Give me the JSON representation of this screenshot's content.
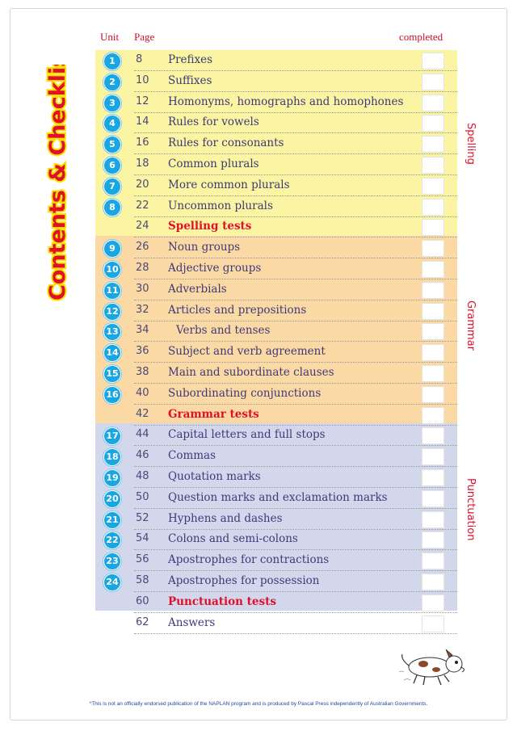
{
  "header": {
    "unit": "Unit",
    "page": "Page",
    "completed": "completed"
  },
  "side_title": "Contents & Checklist",
  "sections": [
    {
      "label": "Spelling",
      "color": "#fbf4a2"
    },
    {
      "label": "Grammar",
      "color": "#fbd9a4"
    },
    {
      "label": "Punctuation",
      "color": "#d3d7ec"
    }
  ],
  "rows": [
    {
      "unit": "1",
      "page": "8",
      "title": "Prefixes"
    },
    {
      "unit": "2",
      "page": "10",
      "title": "Suffixes"
    },
    {
      "unit": "3",
      "page": "12",
      "title": "Homonyms, homographs and homophones"
    },
    {
      "unit": "4",
      "page": "14",
      "title": "Rules for vowels"
    },
    {
      "unit": "5",
      "page": "16",
      "title": "Rules for consonants"
    },
    {
      "unit": "6",
      "page": "18",
      "title": "Common plurals"
    },
    {
      "unit": "7",
      "page": "20",
      "title": "More common plurals"
    },
    {
      "unit": "8",
      "page": "22",
      "title": "Uncommon plurals"
    },
    {
      "unit": "",
      "page": "24",
      "title": "Spelling tests"
    },
    {
      "unit": "9",
      "page": "26",
      "title": "Noun groups"
    },
    {
      "unit": "10",
      "page": "28",
      "title": "Adjective groups"
    },
    {
      "unit": "11",
      "page": "30",
      "title": "Adverbials"
    },
    {
      "unit": "12",
      "page": "32",
      "title": "Articles and prepositions"
    },
    {
      "unit": "13",
      "page": "34",
      "title": "Verbs and tenses"
    },
    {
      "unit": "14",
      "page": "36",
      "title": "Subject and verb agreement"
    },
    {
      "unit": "15",
      "page": "38",
      "title": "Main and subordinate clauses"
    },
    {
      "unit": "16",
      "page": "40",
      "title": "Subordinating conjunctions"
    },
    {
      "unit": "",
      "page": "42",
      "title": "Grammar tests"
    },
    {
      "unit": "17",
      "page": "44",
      "title": "Capital letters and full stops"
    },
    {
      "unit": "18",
      "page": "46",
      "title": "Commas"
    },
    {
      "unit": "19",
      "page": "48",
      "title": "Quotation marks"
    },
    {
      "unit": "20",
      "page": "50",
      "title": "Question marks and exclamation marks"
    },
    {
      "unit": "21",
      "page": "52",
      "title": "Hyphens and dashes"
    },
    {
      "unit": "22",
      "page": "54",
      "title": "Colons and semi-colons"
    },
    {
      "unit": "23",
      "page": "56",
      "title": "Apostrophes for contractions"
    },
    {
      "unit": "24",
      "page": "58",
      "title": "Apostrophes for possession"
    },
    {
      "unit": "",
      "page": "60",
      "title": "Punctuation tests"
    },
    {
      "unit": "",
      "page": "62",
      "title": "Answers"
    }
  ],
  "footnote": "*This is not an officially endorsed publication of the NAPLAN program and is produced by Pascal Press independently of Australian Governments."
}
